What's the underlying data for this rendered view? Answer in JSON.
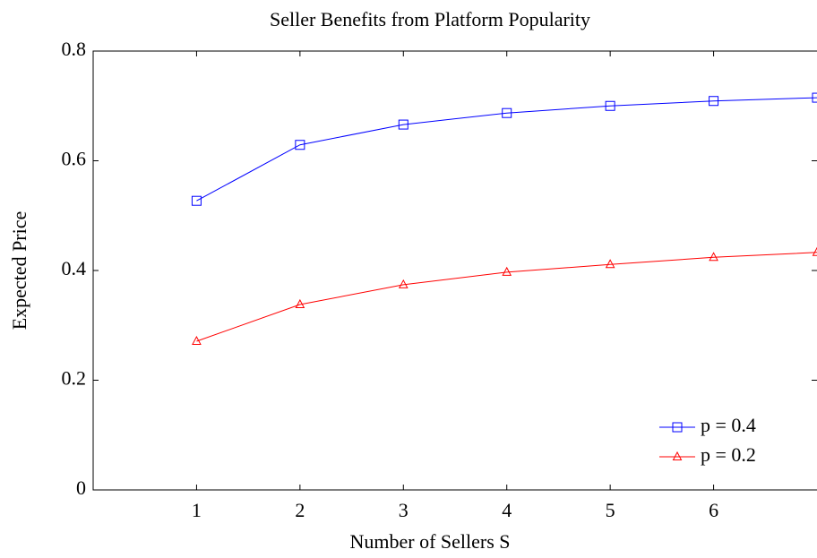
{
  "chart_data": {
    "type": "line",
    "title": "Seller Benefits from Platform Popularity",
    "xlabel": "Number of Sellers S",
    "ylabel": "Expected Price",
    "x": [
      1,
      2,
      3,
      4,
      5,
      6,
      7
    ],
    "series": [
      {
        "name": "p = 0.4",
        "color": "#0000ff",
        "marker": "square",
        "values": [
          0.527,
          0.629,
          0.666,
          0.687,
          0.7,
          0.709,
          0.715
        ]
      },
      {
        "name": "p = 0.2",
        "color": "#ff0000",
        "marker": "triangle",
        "values": [
          0.271,
          0.338,
          0.374,
          0.397,
          0.411,
          0.424,
          0.433
        ]
      }
    ],
    "xlim": [
      0,
      7
    ],
    "ylim": [
      0,
      0.8
    ],
    "xticks": [
      1,
      2,
      3,
      4,
      5,
      6
    ],
    "yticks": [
      0,
      0.2,
      0.4,
      0.6,
      0.8
    ],
    "legend": "lower right"
  }
}
